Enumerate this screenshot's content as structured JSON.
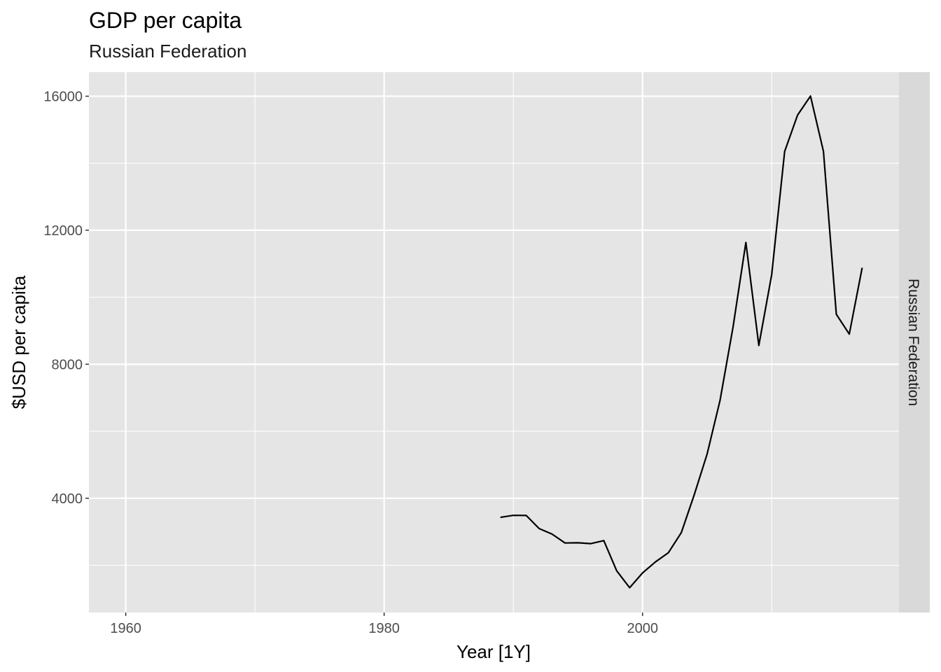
{
  "chart_data": {
    "type": "line",
    "title": "GDP per capita",
    "subtitle": "Russian Federation",
    "xlabel": "Year [1Y]",
    "ylabel": "$USD per capita",
    "facet_label": "Russian Federation",
    "xlim": [
      1957.15,
      2019.85
    ],
    "ylim": [
      590,
      16720
    ],
    "x_ticks": [
      1960,
      1980,
      2000
    ],
    "x_minor_ticks": [
      1970,
      1990,
      2010
    ],
    "y_ticks": [
      4000,
      8000,
      12000,
      16000
    ],
    "y_minor_ticks": [
      2000,
      6000,
      10000,
      14000
    ],
    "grid": true,
    "colors": {
      "panel_bg": "#e5e5e5",
      "grid": "#ffffff",
      "line": "#000000",
      "strip_bg": "#d9d9d9"
    },
    "series": [
      {
        "x": [
          1989,
          1990,
          1991,
          1992,
          1993,
          1994,
          1995,
          1996,
          1997,
          1998,
          1999,
          2000,
          2001,
          2002,
          2003,
          2004,
          2005,
          2006,
          2007,
          2008,
          2009,
          2010,
          2011,
          2012,
          2013,
          2014,
          2015,
          2016,
          2017
        ],
        "values": [
          3430,
          3490,
          3485,
          3095,
          2930,
          2665,
          2670,
          2645,
          2735,
          1835,
          1330,
          1770,
          2100,
          2375,
          2975,
          4100,
          5325,
          6920,
          9100,
          11635,
          8560,
          10675,
          14350,
          15435,
          16005,
          14355,
          9490,
          8900,
          10880
        ]
      }
    ]
  }
}
